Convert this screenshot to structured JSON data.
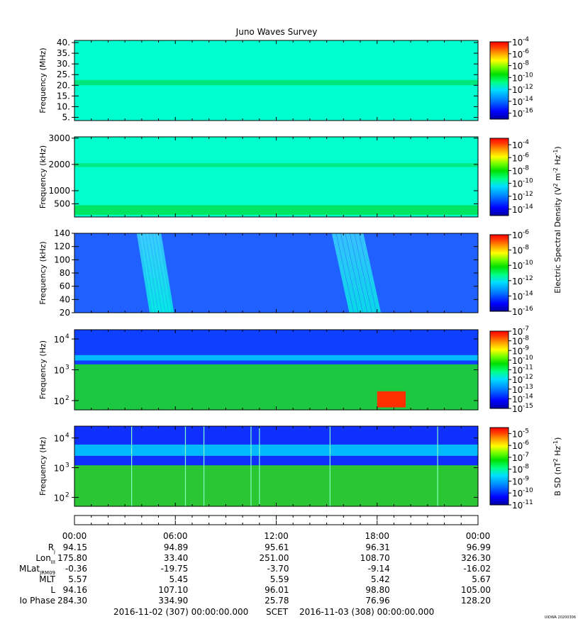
{
  "chart_data": {
    "type": "heatmap",
    "title": "Juno Waves Survey",
    "colorbar_shared_label": "Electric Spectral Density (V2 m-2 Hz-1)",
    "colormap": [
      "#0000a0",
      "#0000ff",
      "#0080ff",
      "#00e0ff",
      "#00ff80",
      "#00e000",
      "#80ff00",
      "#ffff00",
      "#ffa000",
      "#ff4000",
      "#ff0000"
    ],
    "panels": [
      {
        "id": "p1",
        "ylabel": "Frequency (MHz)",
        "yscale": "linear",
        "ylim": [
          3.5,
          41
        ],
        "yticks": [
          {
            "v": 5,
            "label": "5."
          },
          {
            "v": 10,
            "label": "10."
          },
          {
            "v": 15,
            "label": "15."
          },
          {
            "v": 20,
            "label": "20."
          },
          {
            "v": 25,
            "label": "25."
          },
          {
            "v": 30,
            "label": "30."
          },
          {
            "v": 35,
            "label": "35."
          },
          {
            "v": 40,
            "label": "40."
          }
        ],
        "colorbar": {
          "exponents": [
            -4,
            -6,
            -8,
            -10,
            -12,
            -14,
            -16
          ],
          "range": [
            -17,
            -4
          ]
        },
        "background": "#00ffd0",
        "bands": [
          {
            "y0": 20,
            "y1": 22.5,
            "color": "#00e070"
          }
        ]
      },
      {
        "id": "p2",
        "ylabel": "Frequency (kHz)",
        "yscale": "linear",
        "ylim": [
          0,
          3050
        ],
        "yticks": [
          {
            "v": 500,
            "label": "500"
          },
          {
            "v": 1000,
            "label": "1000"
          },
          {
            "v": 2000,
            "label": "2000"
          },
          {
            "v": 3000,
            "label": "3000"
          }
        ],
        "colorbar": {
          "exponents": [
            -4,
            -6,
            -8,
            -10,
            -12,
            -14
          ],
          "range": [
            -15,
            -3
          ]
        },
        "background": "#00ffcc",
        "bands": [
          {
            "y0": 1900,
            "y1": 2050,
            "color": "#00e87a"
          },
          {
            "y0": 80,
            "y1": 450,
            "color": "#00e050"
          }
        ]
      },
      {
        "id": "p3",
        "ylabel": "Frequency (kHz)",
        "yscale": "linear",
        "ylim": [
          20,
          140
        ],
        "yticks": [
          {
            "v": 20,
            "label": "20"
          },
          {
            "v": 40,
            "label": "40"
          },
          {
            "v": 60,
            "label": "60"
          },
          {
            "v": 80,
            "label": "80"
          },
          {
            "v": 100,
            "label": "100"
          },
          {
            "v": 120,
            "label": "120"
          },
          {
            "v": 140,
            "label": "140"
          }
        ],
        "colorbar": {
          "exponents": [
            -6,
            -8,
            -10,
            -12,
            -14,
            -16
          ],
          "range": [
            -16,
            -6
          ]
        },
        "background": "#2060ff",
        "bursts": [
          {
            "t0": 3.7,
            "t1": 5.1
          },
          {
            "t0": 15.3,
            "t1": 17.2
          }
        ]
      },
      {
        "id": "p4",
        "ylabel": "Frequency (Hz)",
        "yscale": "log",
        "ylim": [
          50,
          20000
        ],
        "yticks": [
          {
            "v": 100,
            "base": "10",
            "exp": "2"
          },
          {
            "v": 1000,
            "base": "10",
            "exp": "3"
          },
          {
            "v": 10000,
            "base": "10",
            "exp": "4"
          }
        ],
        "colorbar": {
          "exponents": [
            -7,
            -8,
            -9,
            -10,
            -11,
            -12,
            -13,
            -14,
            -15
          ],
          "range": [
            -15,
            -7
          ]
        },
        "background": "#1040ff",
        "bands": [
          {
            "y0": 2000,
            "y1": 3000,
            "color": "#00d0ff"
          },
          {
            "y0": 50,
            "y1": 1500,
            "color": "#20e020"
          }
        ],
        "hot_region": {
          "t0": 18.0,
          "t1": 19.7,
          "y0": 60,
          "y1": 200
        }
      },
      {
        "id": "p5",
        "ylabel": "Frequency (Hz)",
        "yscale": "log",
        "ylim": [
          50,
          25000
        ],
        "yticks": [
          {
            "v": 100,
            "base": "10",
            "exp": "2"
          },
          {
            "v": 1000,
            "base": "10",
            "exp": "3"
          },
          {
            "v": 10000,
            "base": "10",
            "exp": "4"
          }
        ],
        "colorbar": {
          "label": "B SD (nT2 Hz-1)",
          "exponents": [
            -5,
            -6,
            -7,
            -8,
            -9,
            -10,
            -11
          ],
          "range": [
            -11,
            -4.5
          ]
        },
        "background": "#1030ff",
        "bands": [
          {
            "y0": 2500,
            "y1": 6000,
            "color": "#00d0ff"
          },
          {
            "y0": 50,
            "y1": 1200,
            "color": "#30e010"
          }
        ],
        "spikes": [
          3.4,
          6.6,
          7.7,
          10.5,
          11.0,
          15.2,
          21.6
        ]
      }
    ],
    "x_ticks": [
      "00:00",
      "06:00",
      "12:00",
      "18:00",
      "00:00"
    ],
    "xlim_hours": [
      0,
      24
    ],
    "ephemeris": [
      {
        "label": "Rj",
        "sub": "j",
        "base": "R",
        "values": [
          "94.15",
          "94.89",
          "95.61",
          "96.31",
          "96.99"
        ]
      },
      {
        "label": "LonIII",
        "sub": "III",
        "base": "Lon",
        "values": [
          "175.80",
          "33.40",
          "251.00",
          "108.70",
          "326.30"
        ]
      },
      {
        "label": "MLatJRM09",
        "sub": "JRM09",
        "base": "MLat",
        "values": [
          "-0.36",
          "-19.75",
          "-3.70",
          "-9.14",
          "-16.02"
        ]
      },
      {
        "label": "MLT",
        "sub": "",
        "base": "MLT",
        "values": [
          "5.57",
          "5.45",
          "5.59",
          "5.42",
          "5.67"
        ]
      },
      {
        "label": "L",
        "sub": "",
        "base": "L",
        "values": [
          "94.16",
          "107.10",
          "96.01",
          "98.80",
          "105.00"
        ]
      },
      {
        "label": "Io Phase",
        "sub": "",
        "base": "Io Phase",
        "values": [
          "284.30",
          "334.90",
          "25.78",
          "76.96",
          "128.20"
        ]
      }
    ],
    "footer": {
      "start": "2016-11-02 (307) 00:00:00.000",
      "scet": "SCET",
      "end": "2016-11-03 (308) 00:00:00.000"
    },
    "stamp": "UIOWA 20200306"
  }
}
